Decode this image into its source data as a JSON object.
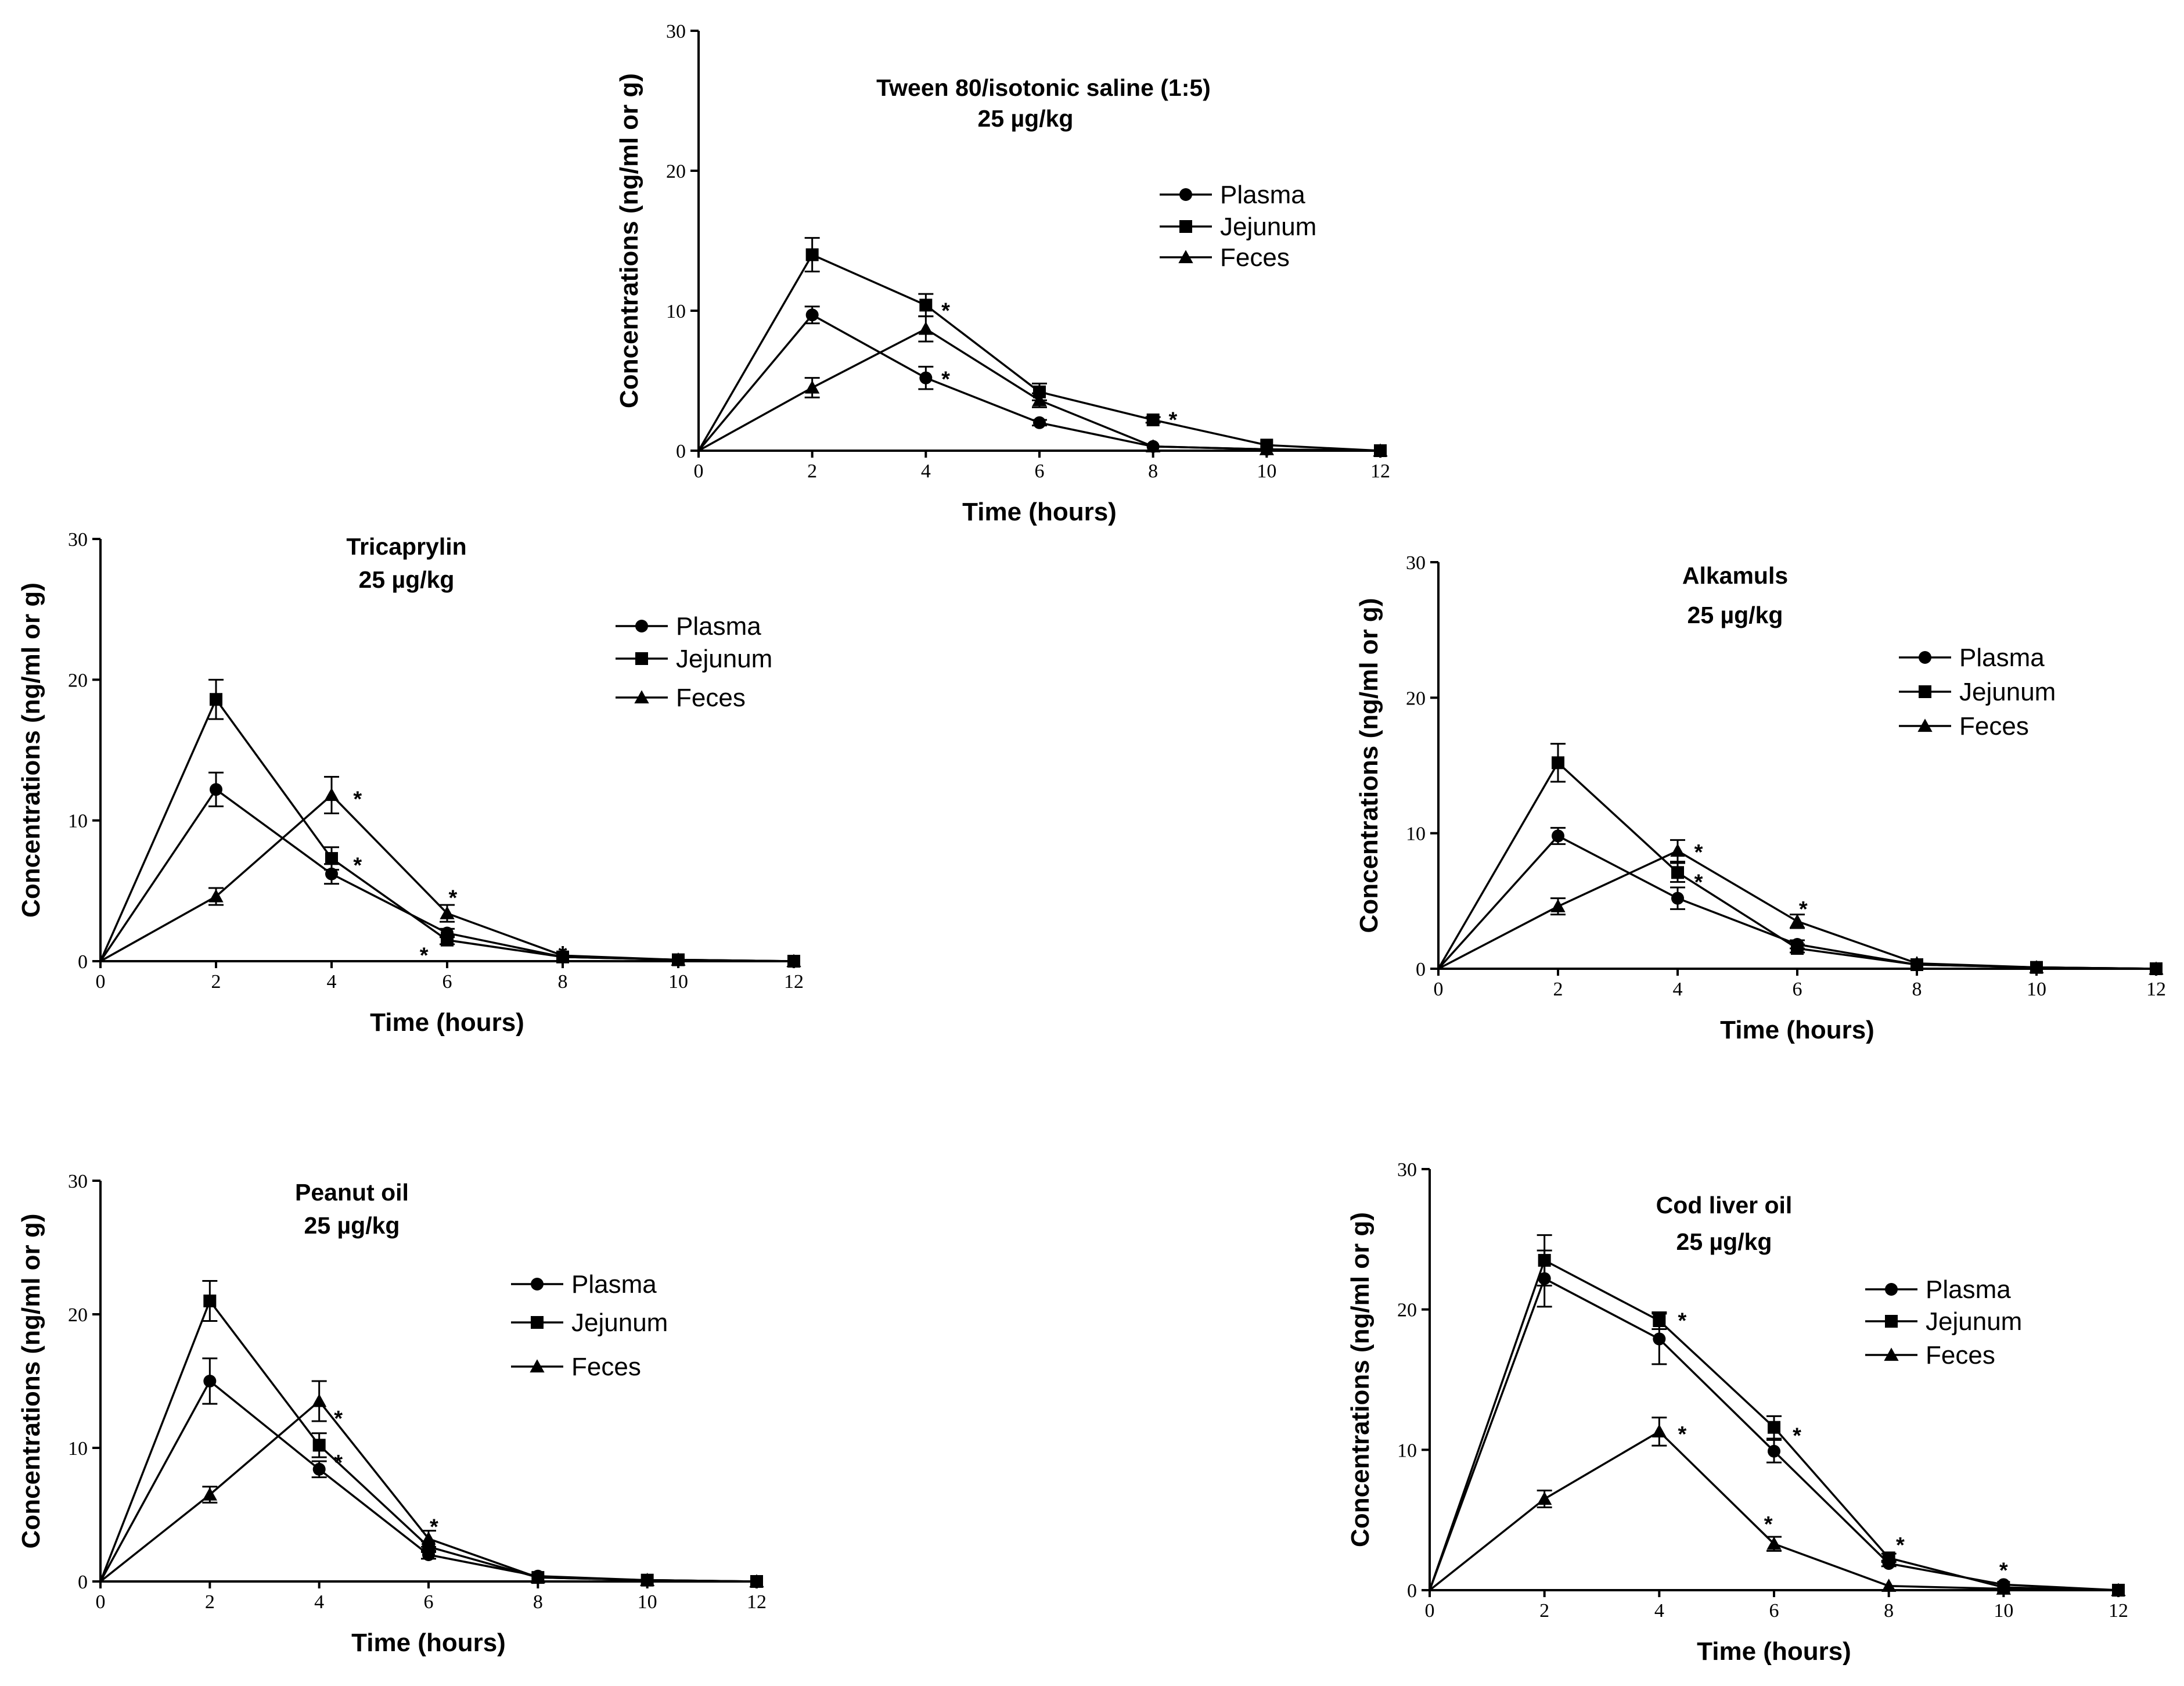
{
  "chart_data": [
    {
      "type": "line",
      "title": "Tween 80/isotonic saline (1:5)",
      "subtitle": "25 µg/kg",
      "xlabel": "Time (hours)",
      "ylabel": "Concentrations (ng/ml or g)",
      "xlim": [
        0,
        12
      ],
      "ylim": [
        0,
        30
      ],
      "x_ticks": [
        "0",
        "2",
        "4",
        "6",
        "8",
        "10",
        "12"
      ],
      "y_ticks": [
        "0",
        "10",
        "20",
        "30"
      ],
      "legend": [
        "Plasma",
        "Jejunum",
        "Feces"
      ],
      "legend_position": "right",
      "x": [
        0,
        2,
        4,
        6,
        8,
        10,
        12
      ],
      "series": [
        {
          "name": "Plasma",
          "marker": "circle",
          "values": [
            0,
            9.7,
            5.2,
            2.0,
            0.3,
            0.1,
            0
          ],
          "errors": [
            0,
            0.6,
            0.8,
            0.2,
            0.1,
            0.05,
            0
          ]
        },
        {
          "name": "Jejunum",
          "marker": "square",
          "values": [
            0,
            14.0,
            10.4,
            4.2,
            2.2,
            0.4,
            0
          ],
          "errors": [
            0,
            1.2,
            0.8,
            0.6,
            0.2,
            0.1,
            0
          ]
        },
        {
          "name": "Feces",
          "marker": "triangle",
          "values": [
            0,
            4.5,
            8.7,
            3.6,
            0.3,
            0.1,
            0
          ],
          "errors": [
            0,
            0.7,
            0.9,
            0.5,
            0.1,
            0.05,
            0
          ]
        }
      ],
      "annotations": [
        {
          "text": "*",
          "x": 4.35,
          "y": 10.4
        },
        {
          "text": "*",
          "x": 4.35,
          "y": 5.5
        },
        {
          "text": "*",
          "x": 8.35,
          "y": 2.6
        }
      ]
    },
    {
      "type": "line",
      "title": "Tricaprylin",
      "subtitle": "25 µg/kg",
      "xlabel": "Time (hours)",
      "ylabel": "Concentrations (ng/ml or g)",
      "xlim": [
        0,
        12
      ],
      "ylim": [
        0,
        30
      ],
      "x_ticks": [
        "0",
        "2",
        "4",
        "6",
        "8",
        "10",
        "12"
      ],
      "y_ticks": [
        "0",
        "10",
        "20",
        "30"
      ],
      "legend": [
        "Plasma",
        "Jejunum",
        "Feces"
      ],
      "legend_position": "right",
      "x": [
        0,
        2,
        4,
        6,
        8,
        10,
        12
      ],
      "series": [
        {
          "name": "Plasma",
          "marker": "circle",
          "values": [
            0,
            12.2,
            6.2,
            2.0,
            0.3,
            0.1,
            0
          ],
          "errors": [
            0,
            1.2,
            0.7,
            0.3,
            0.1,
            0.05,
            0
          ]
        },
        {
          "name": "Jejunum",
          "marker": "square",
          "values": [
            0,
            18.6,
            7.3,
            1.5,
            0.3,
            0.1,
            0
          ],
          "errors": [
            0,
            1.4,
            0.8,
            0.3,
            0.1,
            0.05,
            0
          ]
        },
        {
          "name": "Feces",
          "marker": "triangle",
          "values": [
            0,
            4.6,
            11.8,
            3.4,
            0.4,
            0.1,
            0
          ],
          "errors": [
            0,
            0.6,
            1.3,
            0.6,
            0.1,
            0.05,
            0
          ]
        }
      ],
      "annotations": [
        {
          "text": "*",
          "x": 4.45,
          "y": 11.9
        },
        {
          "text": "*",
          "x": 4.45,
          "y": 7.2
        },
        {
          "text": "*",
          "x": 6.1,
          "y": 4.9
        },
        {
          "text": "*",
          "x": 5.6,
          "y": 0.8
        },
        {
          "text": "*",
          "x": 8.0,
          "y": 0.9
        }
      ]
    },
    {
      "type": "line",
      "title": "Alkamuls",
      "subtitle": "25 µg/kg",
      "xlabel": "Time (hours)",
      "ylabel": "Concentrations (ng/ml or g)",
      "xlim": [
        0,
        12
      ],
      "ylim": [
        0,
        30
      ],
      "x_ticks": [
        "0",
        "2",
        "4",
        "6",
        "8",
        "10",
        "12"
      ],
      "y_ticks": [
        "0",
        "10",
        "20",
        "30"
      ],
      "legend": [
        "Plasma",
        "Jejunum",
        "Feces"
      ],
      "legend_position": "right",
      "x": [
        0,
        2,
        4,
        6,
        8,
        10,
        12
      ],
      "series": [
        {
          "name": "Plasma",
          "marker": "circle",
          "values": [
            0,
            9.8,
            5.2,
            1.8,
            0.3,
            0.1,
            0
          ],
          "errors": [
            0,
            0.6,
            0.8,
            0.3,
            0.1,
            0.05,
            0
          ]
        },
        {
          "name": "Jejunum",
          "marker": "square",
          "values": [
            0,
            15.2,
            7.1,
            1.5,
            0.3,
            0.1,
            0
          ],
          "errors": [
            0,
            1.4,
            0.7,
            0.3,
            0.1,
            0.05,
            0
          ]
        },
        {
          "name": "Feces",
          "marker": "triangle",
          "values": [
            0,
            4.6,
            8.7,
            3.5,
            0.4,
            0.1,
            0
          ],
          "errors": [
            0,
            0.6,
            0.8,
            0.5,
            0.1,
            0.05,
            0
          ]
        }
      ],
      "annotations": [
        {
          "text": "*",
          "x": 4.35,
          "y": 9.0
        },
        {
          "text": "*",
          "x": 4.35,
          "y": 6.8
        },
        {
          "text": "*",
          "x": 6.1,
          "y": 4.8
        }
      ]
    },
    {
      "type": "line",
      "title": "Peanut oil",
      "subtitle": "25 µg/kg",
      "xlabel": "Time (hours)",
      "ylabel": "Concentrations (ng/ml or g)",
      "xlim": [
        0,
        12
      ],
      "ylim": [
        0,
        30
      ],
      "x_ticks": [
        "0",
        "2",
        "4",
        "6",
        "8",
        "10",
        "12"
      ],
      "y_ticks": [
        "0",
        "10",
        "20",
        "30"
      ],
      "legend": [
        "Plasma",
        "Jejunum",
        "Feces"
      ],
      "legend_position": "right",
      "x": [
        0,
        2,
        4,
        6,
        8,
        10,
        12
      ],
      "series": [
        {
          "name": "Plasma",
          "marker": "circle",
          "values": [
            0,
            15.0,
            8.4,
            2.0,
            0.4,
            0.1,
            0
          ],
          "errors": [
            0,
            1.7,
            0.6,
            0.3,
            0.1,
            0.05,
            0
          ]
        },
        {
          "name": "Jejunum",
          "marker": "square",
          "values": [
            0,
            21.0,
            10.2,
            2.6,
            0.3,
            0.1,
            0
          ],
          "errors": [
            0,
            1.5,
            0.9,
            0.4,
            0.1,
            0.05,
            0
          ]
        },
        {
          "name": "Feces",
          "marker": "triangle",
          "values": [
            0,
            6.5,
            13.5,
            3.2,
            0.3,
            0.1,
            0
          ],
          "errors": [
            0,
            0.6,
            1.5,
            0.6,
            0.1,
            0.05,
            0
          ]
        }
      ],
      "annotations": [
        {
          "text": "*",
          "x": 4.35,
          "y": 12.6
        },
        {
          "text": "*",
          "x": 4.35,
          "y": 9.3
        },
        {
          "text": "*",
          "x": 6.1,
          "y": 4.5
        }
      ]
    },
    {
      "type": "line",
      "title": "Cod liver oil",
      "subtitle": "25 µg/kg",
      "xlabel": "Time (hours)",
      "ylabel": "Concentrations (ng/ml or g)",
      "xlim": [
        0,
        12
      ],
      "ylim": [
        0,
        30
      ],
      "x_ticks": [
        "0",
        "2",
        "4",
        "6",
        "8",
        "10",
        "12"
      ],
      "y_ticks": [
        "0",
        "10",
        "20",
        "30"
      ],
      "legend": [
        "Plasma",
        "Jejunum",
        "Feces"
      ],
      "legend_position": "right",
      "x": [
        0,
        2,
        4,
        6,
        8,
        10,
        12
      ],
      "series": [
        {
          "name": "Plasma",
          "marker": "circle",
          "values": [
            0,
            22.2,
            17.9,
            9.9,
            1.9,
            0.4,
            0
          ],
          "errors": [
            0,
            2.0,
            1.8,
            0.8,
            0.2,
            0.1,
            0
          ]
        },
        {
          "name": "Jejunum",
          "marker": "square",
          "values": [
            0,
            23.5,
            19.2,
            11.6,
            2.3,
            0.2,
            0
          ],
          "errors": [
            0,
            1.8,
            0.6,
            0.8,
            0.3,
            0.1,
            0
          ]
        },
        {
          "name": "Feces",
          "marker": "triangle",
          "values": [
            0,
            6.5,
            11.3,
            3.3,
            0.3,
            0.1,
            0
          ],
          "errors": [
            0,
            0.6,
            1.0,
            0.5,
            0.1,
            0.05,
            0
          ]
        }
      ],
      "annotations": [
        {
          "text": "*",
          "x": 4.4,
          "y": 19.6
        },
        {
          "text": "*",
          "x": 4.4,
          "y": 11.5
        },
        {
          "text": "*",
          "x": 6.4,
          "y": 11.4
        },
        {
          "text": "*",
          "x": 5.9,
          "y": 5.1
        },
        {
          "text": "*",
          "x": 8.2,
          "y": 3.6
        },
        {
          "text": "*",
          "x": 10.0,
          "y": 1.8
        }
      ]
    }
  ]
}
